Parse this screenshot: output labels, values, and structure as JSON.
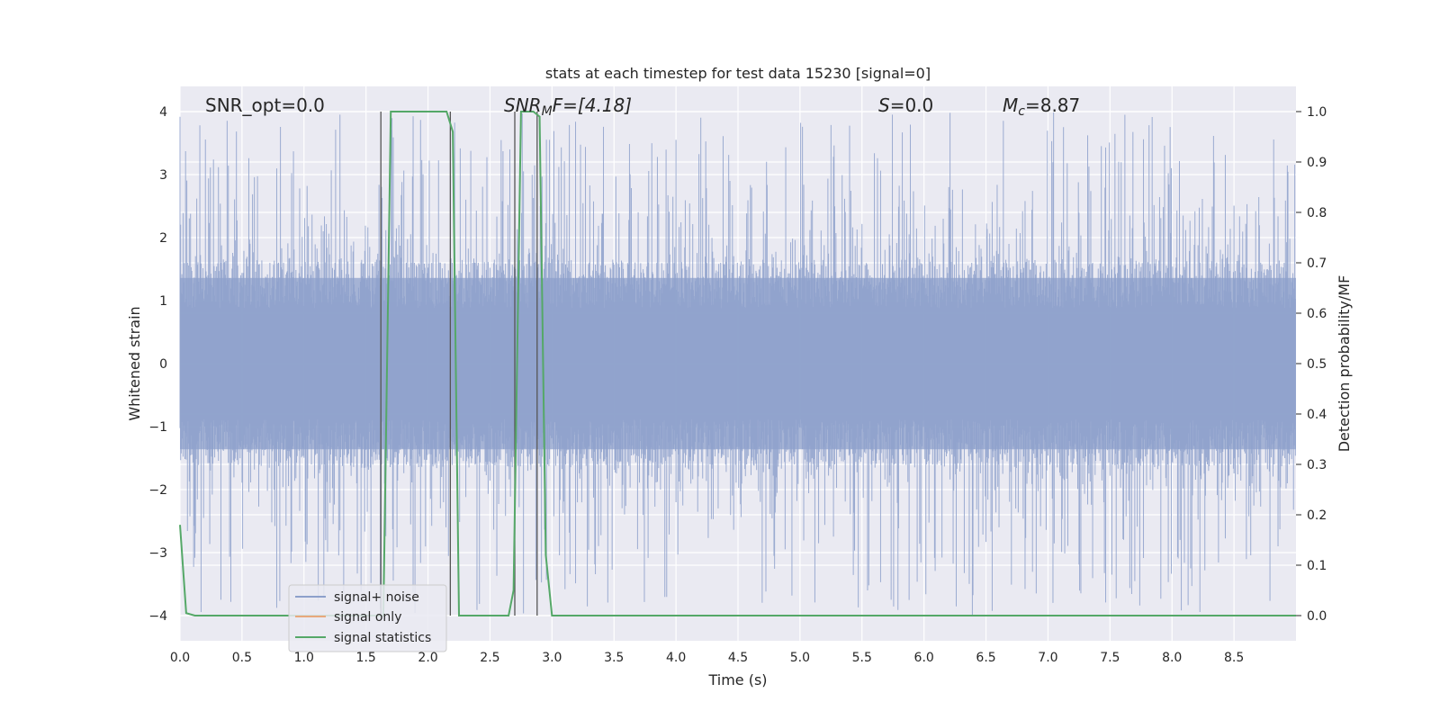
{
  "chart_data": {
    "type": "line",
    "title": "stats at each timestep for test data 15230 [signal=0]",
    "xlabel": "Time (s)",
    "ylabel_left": "Whitened strain",
    "ylabel_right": "Detection probability/MF",
    "xlim": [
      0.0,
      9.0
    ],
    "ylim_left": [
      -4.4,
      4.4
    ],
    "ylim_right": [
      -0.05,
      1.05
    ],
    "x_ticks": [
      "0.0",
      "0.5",
      "1.0",
      "1.5",
      "2.0",
      "2.5",
      "3.0",
      "3.5",
      "4.0",
      "4.5",
      "5.0",
      "5.5",
      "6.0",
      "6.5",
      "7.0",
      "7.5",
      "8.0",
      "8.5"
    ],
    "y_ticks_left": [
      "4",
      "3",
      "2",
      "1",
      "0",
      "−1",
      "−2",
      "−3",
      "−4"
    ],
    "y_ticks_right": [
      "1.0",
      "0.9",
      "0.8",
      "0.7",
      "0.6",
      "0.5",
      "0.4",
      "0.3",
      "0.2",
      "0.1",
      "0.0"
    ],
    "grid": true,
    "legend_placement": "lower-left",
    "annotations": {
      "snr_opt": "SNR_opt=0.0",
      "snr_mf_name": "SNR",
      "snr_mf_sub": "M",
      "snr_mf_tail": "F=[4.18]",
      "s_name": "S",
      "s_tail": "=0.0",
      "mc_name": "M",
      "mc_sub": "c",
      "mc_tail": "=8.87"
    },
    "series": [
      {
        "name": "signal+ noise",
        "color": "#8da0cb",
        "kind": "noise",
        "envelope_typical": [
          -1.6,
          1.6
        ],
        "spike_range": [
          -4.0,
          4.0
        ]
      },
      {
        "name": "signal only",
        "color": "#e8a87c",
        "x": [],
        "y": []
      },
      {
        "name": "signal statistics",
        "color": "#55a868",
        "axis": "right",
        "x": [
          0.0,
          0.05,
          0.12,
          0.5,
          1.0,
          1.5,
          1.6,
          1.64,
          1.7,
          2.0,
          2.15,
          2.2,
          2.25,
          2.35,
          2.65,
          2.69,
          2.75,
          2.85,
          2.9,
          2.95,
          3.0,
          3.5,
          4.0,
          5.0,
          6.0,
          7.0,
          8.0,
          9.0
        ],
        "y": [
          0.18,
          0.005,
          0.0,
          0.0,
          0.0,
          0.0,
          0.0,
          0.0,
          1.0,
          1.0,
          1.0,
          0.96,
          0.0,
          0.0,
          0.0,
          0.05,
          1.0,
          1.0,
          0.99,
          0.12,
          0.0,
          0.0,
          0.0,
          0.0,
          0.0,
          0.0,
          0.0,
          0.0
        ]
      }
    ],
    "vertical_lines_x": [
      1.62,
      2.18,
      2.7,
      2.88
    ]
  }
}
